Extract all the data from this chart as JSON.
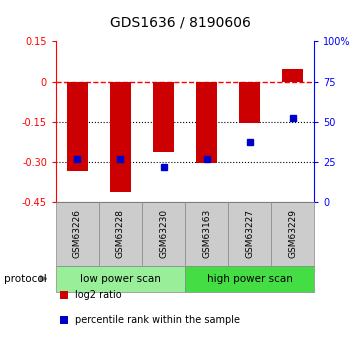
{
  "title": "GDS1636 / 8190606",
  "samples": [
    "GSM63226",
    "GSM63228",
    "GSM63230",
    "GSM63163",
    "GSM63227",
    "GSM63229"
  ],
  "log2_ratio": [
    -0.335,
    -0.415,
    -0.265,
    -0.305,
    -0.155,
    0.045
  ],
  "percentile_rank": [
    27,
    27,
    22,
    27,
    37,
    52
  ],
  "ylim_left": [
    -0.45,
    0.15
  ],
  "ylim_right": [
    0,
    100
  ],
  "yticks_left": [
    0.15,
    0.0,
    -0.15,
    -0.3,
    -0.45
  ],
  "yticks_right": [
    100,
    75,
    50,
    25,
    0
  ],
  "ytick_labels_left": [
    "0.15",
    "0",
    "-0.15",
    "-0.30",
    "-0.45"
  ],
  "ytick_labels_right": [
    "100%",
    "75",
    "50",
    "25",
    "0"
  ],
  "hlines_dotted": [
    -0.15,
    -0.3
  ],
  "dashed_hline": 0.0,
  "bar_color": "#cc0000",
  "dot_color": "#0000cc",
  "protocol_groups": [
    {
      "label": "low power scan",
      "n": 3,
      "color": "#99ee99"
    },
    {
      "label": "high power scan",
      "n": 3,
      "color": "#44dd44"
    }
  ],
  "legend_items": [
    {
      "label": "log2 ratio",
      "color": "#cc0000"
    },
    {
      "label": "percentile rank within the sample",
      "color": "#0000cc"
    }
  ],
  "bar_width": 0.5,
  "plot_bg": "#ffffff",
  "axes_bg": "#ffffff",
  "sample_box_color": "#cccccc",
  "protocol_label": "protocol"
}
